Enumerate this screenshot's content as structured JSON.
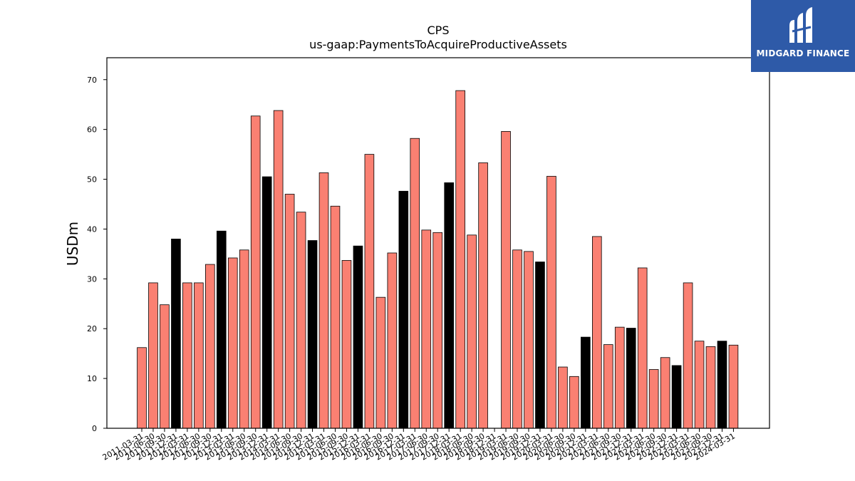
{
  "chart_data": {
    "type": "bar",
    "title": "CPS",
    "subtitle": "us-gaap:PaymentsToAcquireProductiveAssets",
    "xlabel": "",
    "ylabel": "USDm",
    "ylim": [
      0,
      74.4
    ],
    "yticks": [
      0,
      10,
      20,
      30,
      40,
      50,
      60,
      70
    ],
    "grid": false,
    "colors": {
      "default": "#fa8072",
      "highlight": "#000000",
      "edge": "#000000"
    },
    "categories": [
      "2011-03-31",
      "2011-06-30",
      "2011-09-30",
      "2011-12-31",
      "2012-03-31",
      "2012-06-30",
      "2012-09-30",
      "2012-12-31",
      "2013-03-31",
      "2013-06-30",
      "2013-09-30",
      "2013-12-31",
      "2014-03-31",
      "2014-06-30",
      "2014-09-30",
      "2014-12-31",
      "2015-03-31",
      "2015-06-30",
      "2015-09-30",
      "2015-12-31",
      "2016-03-31",
      "2016-06-30",
      "2016-09-30",
      "2016-12-31",
      "2017-03-31",
      "2017-06-30",
      "2017-09-30",
      "2017-12-31",
      "2018-03-31",
      "2018-06-30",
      "2018-09-30",
      "2018-12-31",
      "2019-03-31",
      "2019-06-30",
      "2019-09-30",
      "2019-12-31",
      "2020-03-31",
      "2020-06-30",
      "2020-09-30",
      "2020-12-31",
      "2021-03-31",
      "2021-06-30",
      "2021-09-30",
      "2021-12-31",
      "2022-03-31",
      "2022-06-30",
      "2022-09-30",
      "2022-12-31",
      "2023-03-31",
      "2023-06-30",
      "2023-09-30",
      "2023-12-31",
      "2024-03-31"
    ],
    "values": [
      16.2,
      29.2,
      24.8,
      38.0,
      29.2,
      29.2,
      32.9,
      39.6,
      34.2,
      35.8,
      62.7,
      50.5,
      63.8,
      47.0,
      43.4,
      37.7,
      51.3,
      44.6,
      33.7,
      36.6,
      55.0,
      26.3,
      35.2,
      47.6,
      58.2,
      39.8,
      39.3,
      49.3,
      67.8,
      38.8,
      53.3,
      0,
      59.6,
      35.8,
      35.5,
      33.4,
      50.6,
      12.3,
      10.4,
      18.3,
      38.5,
      16.8,
      20.3,
      20.1,
      32.2,
      11.8,
      14.2,
      12.6,
      29.2,
      17.5,
      16.4,
      17.5,
      16.7
    ],
    "highlight": [
      false,
      false,
      false,
      true,
      false,
      false,
      false,
      true,
      false,
      false,
      false,
      true,
      false,
      false,
      false,
      true,
      false,
      false,
      false,
      true,
      false,
      false,
      false,
      true,
      false,
      false,
      false,
      true,
      false,
      false,
      false,
      true,
      false,
      false,
      false,
      true,
      false,
      false,
      false,
      true,
      false,
      false,
      false,
      true,
      false,
      false,
      false,
      true,
      false,
      false,
      false,
      true,
      false
    ]
  },
  "logo": {
    "text": "MIDGARD FINANCE",
    "icon": "midgard-logo-icon"
  }
}
